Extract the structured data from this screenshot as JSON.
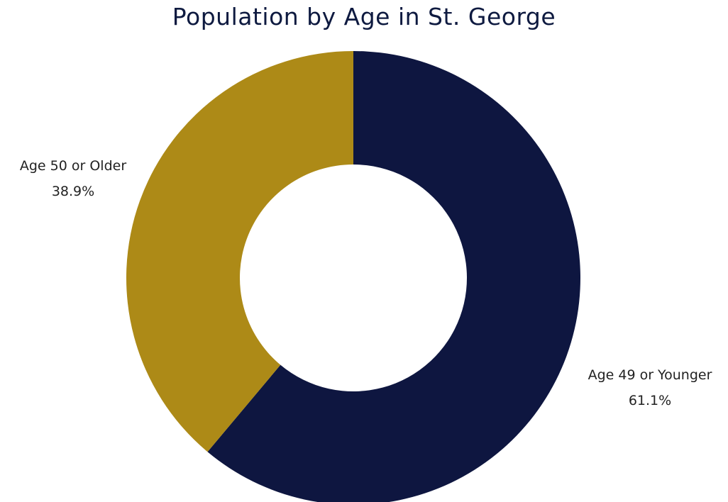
{
  "chart_data": {
    "type": "pie",
    "title": "Population by Age in St. George",
    "donut": true,
    "slices": [
      {
        "label": "Age 49 or Younger",
        "value_label": "61.1%",
        "value": 61.1,
        "color": "#0e1640"
      },
      {
        "label": "Age 50 or Older",
        "value_label": "38.9%",
        "value": 38.9,
        "color": "#ad8a17"
      }
    ]
  }
}
